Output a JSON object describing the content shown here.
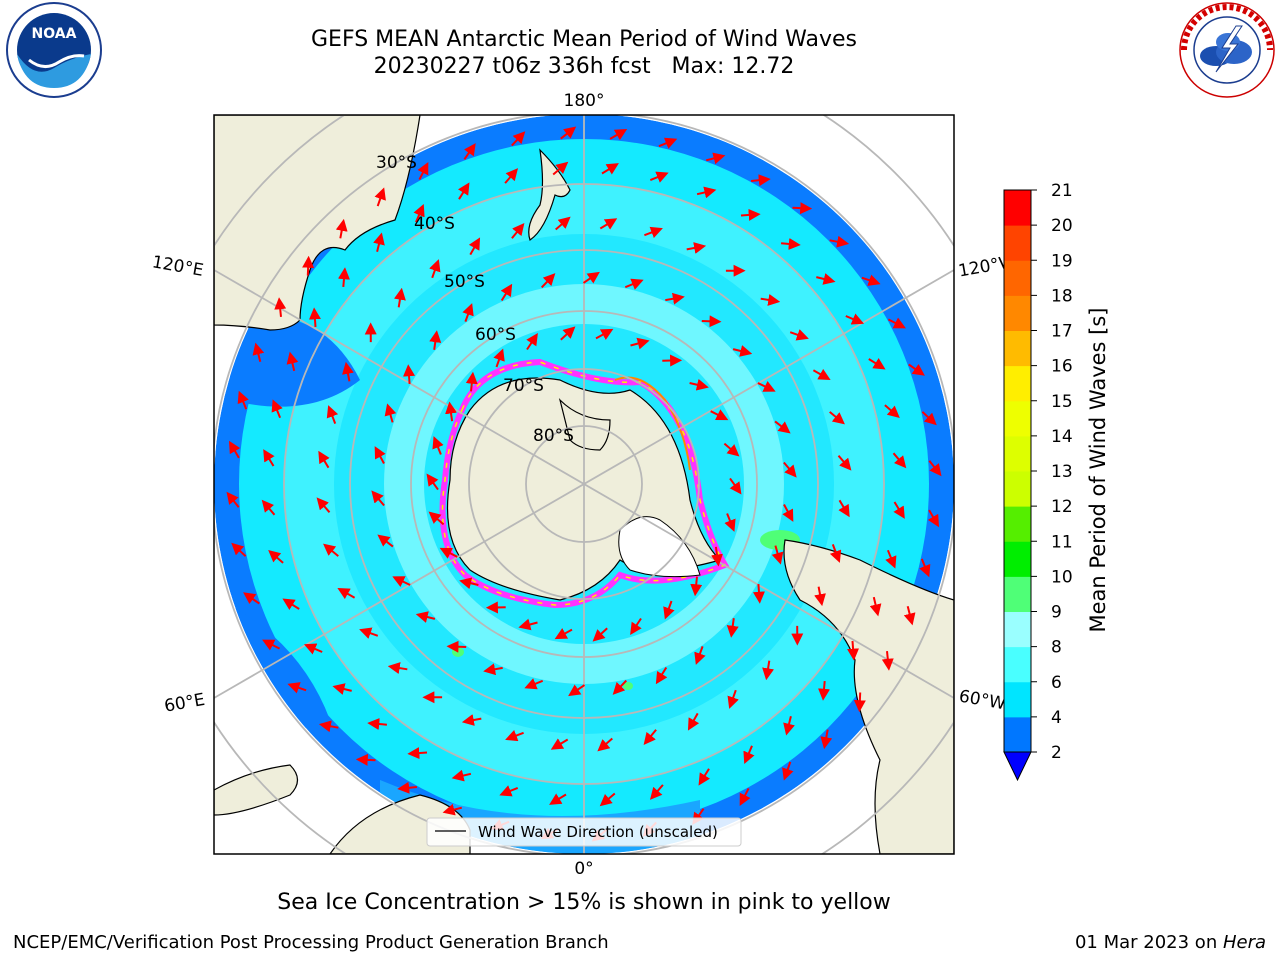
{
  "header": {
    "title_line1": "GEFS MEAN Antarctic Mean Period of Wind Waves",
    "title_line2": "20230227 t06z 336h fcst   Max: 12.72"
  },
  "logos": {
    "left": {
      "icon": "noaa-logo",
      "text": "NOAA",
      "ring_text": "NATIONAL OCEANIC AND ATMOSPHERIC ADMINISTRATION · U.S. DEPARTMENT OF COMMERCE"
    },
    "right": {
      "icon": "nws-logo",
      "ring_text": "NATIONAL WEATHER SERVICE"
    }
  },
  "map": {
    "projection": "south-polar-stereographic",
    "longitude_labels": {
      "top": "180°",
      "bottom": "0°",
      "upper_left": "120°E",
      "upper_right": "120°W",
      "lower_left": "60°E",
      "lower_right": "60°W"
    },
    "latitude_labels": [
      "30°S",
      "40°S",
      "50°S",
      "60°S",
      "70°S",
      "80°S"
    ],
    "legend_label": "Wind Wave Direction (unscaled)",
    "arrow_color": "#ff0000",
    "land_color": "#efeedb",
    "sea_ice_colors": [
      "#ff33ff",
      "#ff8800",
      "#ffff00"
    ]
  },
  "colorbar": {
    "label": "Mean Period of Wind Waves [s]",
    "ticks": [
      "2",
      "4",
      "6",
      "8",
      "9",
      "10",
      "11",
      "12",
      "13",
      "14",
      "15",
      "16",
      "17",
      "18",
      "19",
      "20",
      "21"
    ],
    "colors": [
      "#0077ff",
      "#00e5ff",
      "#49ffff",
      "#9affff",
      "#4fff77",
      "#00ee00",
      "#55ee00",
      "#ccff00",
      "#ddff00",
      "#eeff00",
      "#ffee00",
      "#ffbb00",
      "#ff8800",
      "#ff6600",
      "#ff4400",
      "#ff0000"
    ],
    "under_color": "#0000ff"
  },
  "caption": "Sea Ice Concentration > 15% is shown in pink to yellow",
  "footer": {
    "left": "NCEP/EMC/Verification Post Processing Product Generation Branch",
    "date": "01 Mar 2023 on ",
    "machine": "Hera"
  }
}
